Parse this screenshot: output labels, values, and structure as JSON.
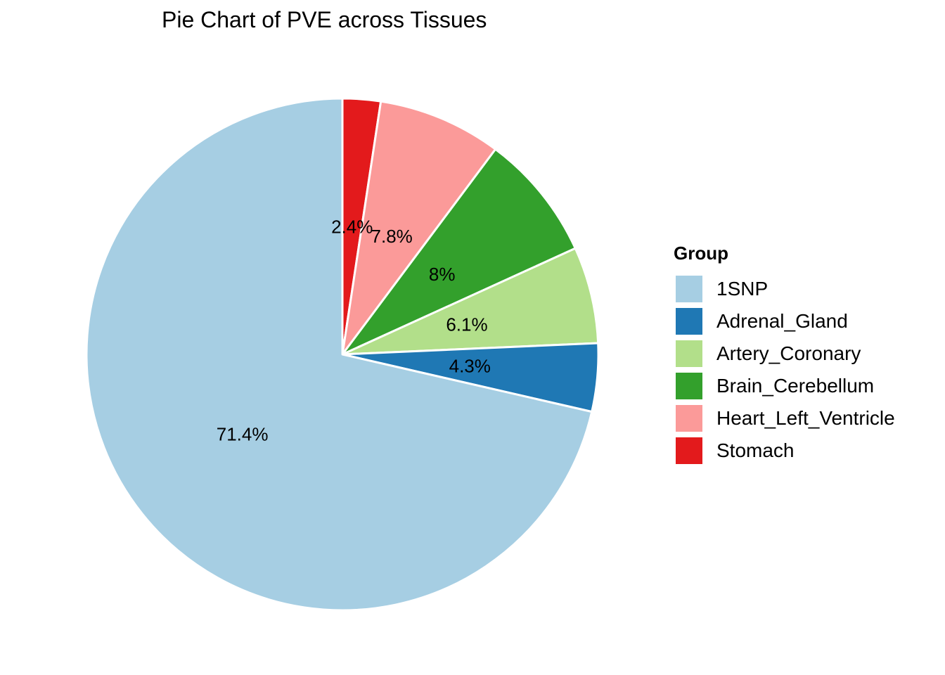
{
  "chart_data": {
    "type": "pie",
    "title": "Pie Chart of PVE across Tissues",
    "legend_title": "Group",
    "legend_position": "right",
    "categories": [
      "1SNP",
      "Adrenal_Gland",
      "Artery_Coronary",
      "Brain_Cerebellum",
      "Heart_Left_Ventricle",
      "Stomach"
    ],
    "values": [
      71.4,
      4.3,
      6.1,
      8.0,
      7.8,
      2.4
    ],
    "labels": [
      "71.4%",
      "4.3%",
      "6.1%",
      "8%",
      "7.8%",
      "2.4%"
    ],
    "colors": [
      "#a6cee3",
      "#1f78b4",
      "#b2df8a",
      "#33a02c",
      "#fb9a99",
      "#e31a1c"
    ],
    "slice_order_clockwise_from_top": [
      "Stomach",
      "Heart_Left_Ventricle",
      "Brain_Cerebellum",
      "Artery_Coronary",
      "Adrenal_Gland",
      "1SNP"
    ]
  }
}
